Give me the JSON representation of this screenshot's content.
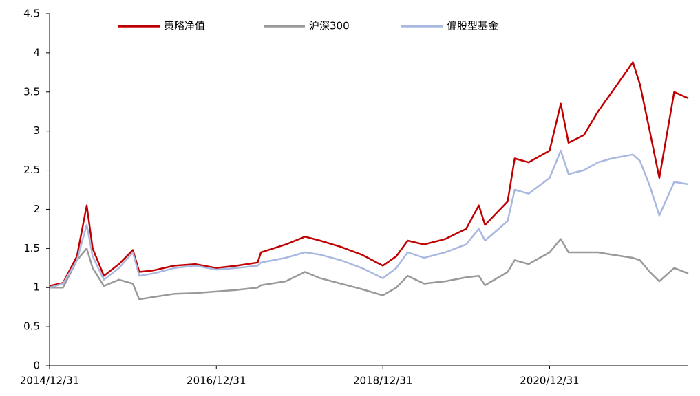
{
  "chart_data": {
    "type": "line",
    "x": [
      "2014/12/31",
      "2015/02/28",
      "2015/04/30",
      "2015/06/12",
      "2015/07/08",
      "2015/08/26",
      "2015/10/31",
      "2015/12/31",
      "2016/01/28",
      "2016/03/31",
      "2016/06/30",
      "2016/09/30",
      "2016/12/31",
      "2017/03/31",
      "2017/06/30",
      "2017/07/15",
      "2017/10/31",
      "2018/01/24",
      "2018/03/31",
      "2018/06/30",
      "2018/09/30",
      "2018/12/31",
      "2019/02/28",
      "2019/04/19",
      "2019/06/30",
      "2019/09/30",
      "2019/12/31",
      "2020/02/25",
      "2020/03/23",
      "2020/06/30",
      "2020/07/31",
      "2020/09/30",
      "2020/12/31",
      "2021/02/18",
      "2021/03/24",
      "2021/05/31",
      "2021/07/31",
      "2021/09/30",
      "2021/12/31",
      "2022/01/31",
      "2022/03/15",
      "2022/04/26",
      "2022/06/30",
      "2022/08/31"
    ],
    "series": [
      {
        "name": "策略净值",
        "color": "#c00000",
        "values": [
          1.02,
          1.06,
          1.4,
          2.05,
          1.5,
          1.15,
          1.3,
          1.48,
          1.2,
          1.22,
          1.28,
          1.3,
          1.25,
          1.28,
          1.32,
          1.45,
          1.55,
          1.65,
          1.6,
          1.52,
          1.42,
          1.28,
          1.4,
          1.6,
          1.55,
          1.62,
          1.75,
          2.05,
          1.8,
          2.1,
          2.65,
          2.6,
          2.75,
          3.35,
          2.85,
          2.95,
          3.25,
          3.5,
          3.88,
          3.6,
          3.0,
          2.4,
          3.5,
          3.42
        ]
      },
      {
        "name": "沪深300",
        "color": "#999999",
        "values": [
          1.0,
          1.0,
          1.35,
          1.5,
          1.25,
          1.02,
          1.1,
          1.05,
          0.85,
          0.88,
          0.92,
          0.93,
          0.95,
          0.97,
          1.0,
          1.03,
          1.08,
          1.2,
          1.12,
          1.05,
          0.98,
          0.9,
          1.0,
          1.15,
          1.05,
          1.08,
          1.13,
          1.15,
          1.03,
          1.2,
          1.35,
          1.3,
          1.45,
          1.62,
          1.45,
          1.45,
          1.45,
          1.42,
          1.38,
          1.35,
          1.2,
          1.08,
          1.25,
          1.18
        ]
      },
      {
        "name": "偏股型基金",
        "color": "#a9b8e0",
        "values": [
          1.0,
          1.05,
          1.35,
          1.8,
          1.4,
          1.1,
          1.25,
          1.45,
          1.15,
          1.18,
          1.25,
          1.28,
          1.23,
          1.25,
          1.28,
          1.32,
          1.38,
          1.45,
          1.42,
          1.35,
          1.25,
          1.12,
          1.25,
          1.45,
          1.38,
          1.45,
          1.55,
          1.75,
          1.6,
          1.85,
          2.25,
          2.2,
          2.4,
          2.75,
          2.45,
          2.5,
          2.6,
          2.65,
          2.7,
          2.62,
          2.3,
          1.92,
          2.35,
          2.32
        ]
      }
    ],
    "xlim": [
      "2014/12/31",
      "2022/08/31"
    ],
    "xticks": [
      "2014/12/31",
      "2016/12/31",
      "2018/12/31",
      "2020/12/31"
    ],
    "ylim": [
      0,
      4.5
    ],
    "yticks": [
      0,
      0.5,
      1,
      1.5,
      2,
      2.5,
      3,
      3.5,
      4,
      4.5
    ],
    "legend": "top"
  }
}
